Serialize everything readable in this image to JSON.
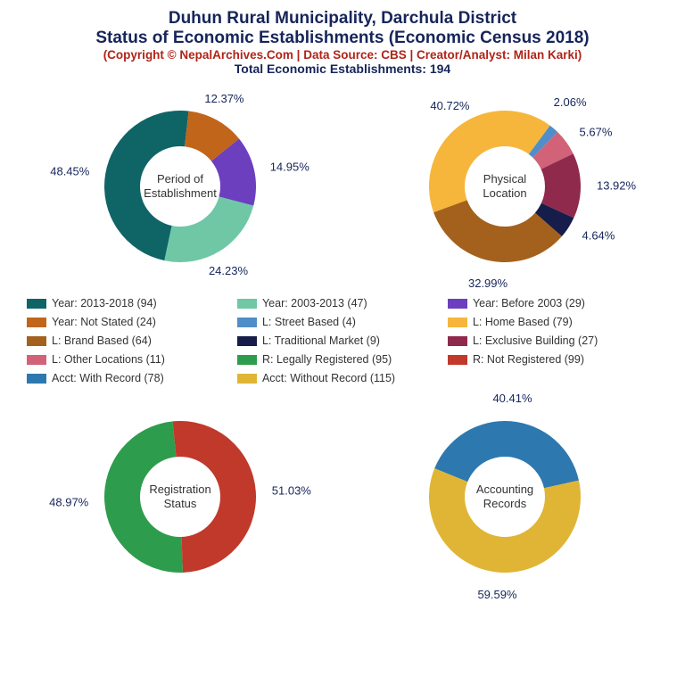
{
  "title": {
    "line1": "Duhun Rural Municipality, Darchula District",
    "line2": "Status of Economic Establishments (Economic Census 2018)",
    "color": "#16255a",
    "fontsize": 19
  },
  "copyright": {
    "text": "(Copyright © NepalArchives.Com | Data Source: CBS | Creator/Analyst: Milan Karki)",
    "color": "#b02418",
    "fontsize": 13.5
  },
  "total": {
    "text": "Total Economic Establishments: 194",
    "color": "#16255a",
    "fontsize": 14
  },
  "donut_style": {
    "outer_radius": 85,
    "inner_radius": 45,
    "label_color": "#16255a",
    "label_fontsize": 13
  },
  "charts": {
    "period": {
      "center_label": "Period of\nEstablishment",
      "slices": [
        {
          "label": "48.45%",
          "value": 48.45,
          "color": "#0f6466"
        },
        {
          "label": "12.37%",
          "value": 12.37,
          "color": "#c1651b"
        },
        {
          "label": "14.95%",
          "value": 14.95,
          "color": "#6c3fbf"
        },
        {
          "label": "24.23%",
          "value": 24.23,
          "color": "#6fc7a6"
        }
      ],
      "start_angle": -168
    },
    "location": {
      "center_label": "Physical\nLocation",
      "slices": [
        {
          "label": "40.72%",
          "value": 40.72,
          "color": "#f6b63c"
        },
        {
          "label": "2.06%",
          "value": 2.06,
          "color": "#4f8ec9"
        },
        {
          "label": "5.67%",
          "value": 5.67,
          "color": "#d16277"
        },
        {
          "label": "13.92%",
          "value": 13.92,
          "color": "#8f2a4d"
        },
        {
          "label": "4.64%",
          "value": 4.64,
          "color": "#171d4a"
        },
        {
          "label": "32.99%",
          "value": 32.99,
          "color": "#a4611d"
        }
      ],
      "start_angle": -110
    },
    "registration": {
      "center_label": "Registration\nStatus",
      "slices": [
        {
          "label": "48.97%",
          "value": 48.97,
          "color": "#2e9c4d"
        },
        {
          "label": "51.03%",
          "value": 51.03,
          "color": "#c0392b"
        }
      ],
      "start_angle": -182
    },
    "accounting": {
      "center_label": "Accounting\nRecords",
      "slices": [
        {
          "label": "40.41%",
          "value": 40.41,
          "color": "#2e78b0"
        },
        {
          "label": "59.59%",
          "value": 59.59,
          "color": "#e0b535"
        }
      ],
      "start_angle": -68
    }
  },
  "legend": [
    {
      "text": "Year: 2013-2018 (94)",
      "color": "#0f6466"
    },
    {
      "text": "Year: 2003-2013 (47)",
      "color": "#6fc7a6"
    },
    {
      "text": "Year: Before 2003 (29)",
      "color": "#6c3fbf"
    },
    {
      "text": "Year: Not Stated (24)",
      "color": "#c1651b"
    },
    {
      "text": "L: Street Based (4)",
      "color": "#4f8ec9"
    },
    {
      "text": "L: Home Based (79)",
      "color": "#f6b63c"
    },
    {
      "text": "L: Brand Based (64)",
      "color": "#a4611d"
    },
    {
      "text": "L: Traditional Market (9)",
      "color": "#171d4a"
    },
    {
      "text": "L: Exclusive Building (27)",
      "color": "#8f2a4d"
    },
    {
      "text": "L: Other Locations (11)",
      "color": "#d16277"
    },
    {
      "text": "R: Legally Registered (95)",
      "color": "#2e9c4d"
    },
    {
      "text": "R: Not Registered (99)",
      "color": "#c0392b"
    },
    {
      "text": "Acct: With Record (78)",
      "color": "#2e78b0"
    },
    {
      "text": "Acct: Without Record (115)",
      "color": "#e0b535"
    }
  ]
}
